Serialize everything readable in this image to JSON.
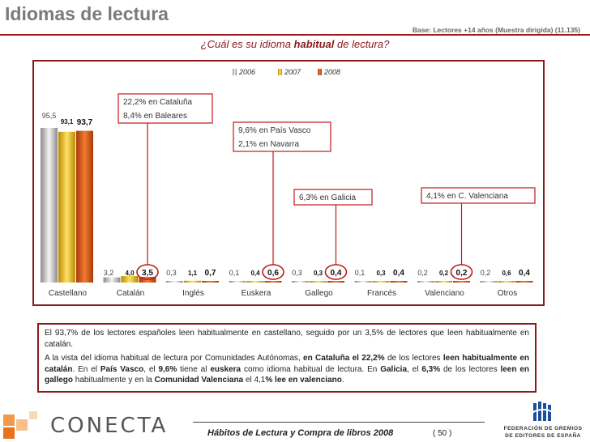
{
  "header": {
    "title": "Idiomas de lectura",
    "base_note": "Base: Lectores +14 años (Muestra dirigida) (11.135)",
    "question_pre": "¿Cuál es su idioma ",
    "question_bold": "habitual",
    "question_post": " de lectura?"
  },
  "chart_data": {
    "type": "bar",
    "categories": [
      "Castellano",
      "Catalán",
      "Inglés",
      "Euskera",
      "Gallego",
      "Francés",
      "Valenciano",
      "Otros"
    ],
    "series": [
      {
        "name": "2006",
        "color": "#c0c0c0",
        "values": [
          95.5,
          3.2,
          0.3,
          0.1,
          0.3,
          0.1,
          0.2,
          0.2
        ],
        "labels": [
          "95,5",
          "3,2",
          "0,3",
          "0,1",
          "0,3",
          "0,1",
          "0,2",
          "0,2"
        ]
      },
      {
        "name": "2007",
        "color": "#e0b000",
        "values": [
          93.1,
          4.0,
          1.1,
          0.4,
          0.3,
          0.3,
          0.2,
          0.6
        ],
        "labels": [
          "93,1",
          "4,0",
          "1,1",
          "0,4",
          "0,3",
          "0,3",
          "0,2",
          "0,6"
        ]
      },
      {
        "name": "2008",
        "color": "#d05010",
        "values": [
          93.7,
          3.5,
          0.7,
          0.6,
          0.4,
          0.4,
          0.2,
          0.4
        ],
        "labels": [
          "93,7",
          "3,5",
          "0,7",
          "0,6",
          "0,4",
          "0,4",
          "0,2",
          "0,4"
        ]
      }
    ],
    "ylim": [
      0,
      100
    ],
    "legend_position": "top-center",
    "circled_2008": [
      "Catalán",
      "Euskera",
      "Gallego",
      "Valenciano"
    ],
    "annotations": [
      {
        "category": "Catalán",
        "lines": [
          "22,2% en Cataluña",
          "8,4% en Baleares"
        ]
      },
      {
        "category": "Euskera",
        "lines": [
          "9,6% en País Vasco",
          "2,1% en Navarra"
        ]
      },
      {
        "category": "Gallego",
        "lines": [
          "6,3% en Galicia"
        ]
      },
      {
        "category": "Valenciano",
        "lines": [
          "4,1% en C. Valenciana"
        ]
      }
    ]
  },
  "text": {
    "p1": "El 93,7% de los lectores españoles leen habitualmente en castellano, seguido por un 3,5% de lectores que leen habitualmente en catalán.",
    "p2_parts": [
      {
        "t": "A la vista del idioma habitual de lectura por Comunidades Autónomas, ",
        "b": false
      },
      {
        "t": "en Cataluña el 22,2%",
        "b": true
      },
      {
        "t": " de los lectores ",
        "b": false
      },
      {
        "t": "leen habitualmente en catalán",
        "b": true
      },
      {
        "t": ". En el ",
        "b": false
      },
      {
        "t": "País Vasco",
        "b": true
      },
      {
        "t": ", el ",
        "b": false
      },
      {
        "t": "9,6%",
        "b": true
      },
      {
        "t": " tiene al ",
        "b": false
      },
      {
        "t": "euskera",
        "b": true
      },
      {
        "t": " como idioma habitual de lectura. En ",
        "b": false
      },
      {
        "t": "Galicia",
        "b": true
      },
      {
        "t": ", el ",
        "b": false
      },
      {
        "t": "6,3%",
        "b": true
      },
      {
        "t": " de los lectores ",
        "b": false
      },
      {
        "t": "leen en gallego",
        "b": true
      },
      {
        "t": " habitualmente y en la ",
        "b": false
      },
      {
        "t": "Comunidad Valenciana",
        "b": true
      },
      {
        "t": " el 4,1",
        "b": false
      },
      {
        "t": "% lee en valenciano",
        "b": true
      },
      {
        "t": ".",
        "b": false
      }
    ]
  },
  "footer": {
    "title": "Hábitos de Lectura y Compra de libros 2008",
    "page": "( 50 )",
    "conecta": "CONECTA",
    "federacion_line1": "FEDERACIÓN DE GREMIOS",
    "federacion_line2": "DE EDITORES DE ESPAÑA"
  }
}
